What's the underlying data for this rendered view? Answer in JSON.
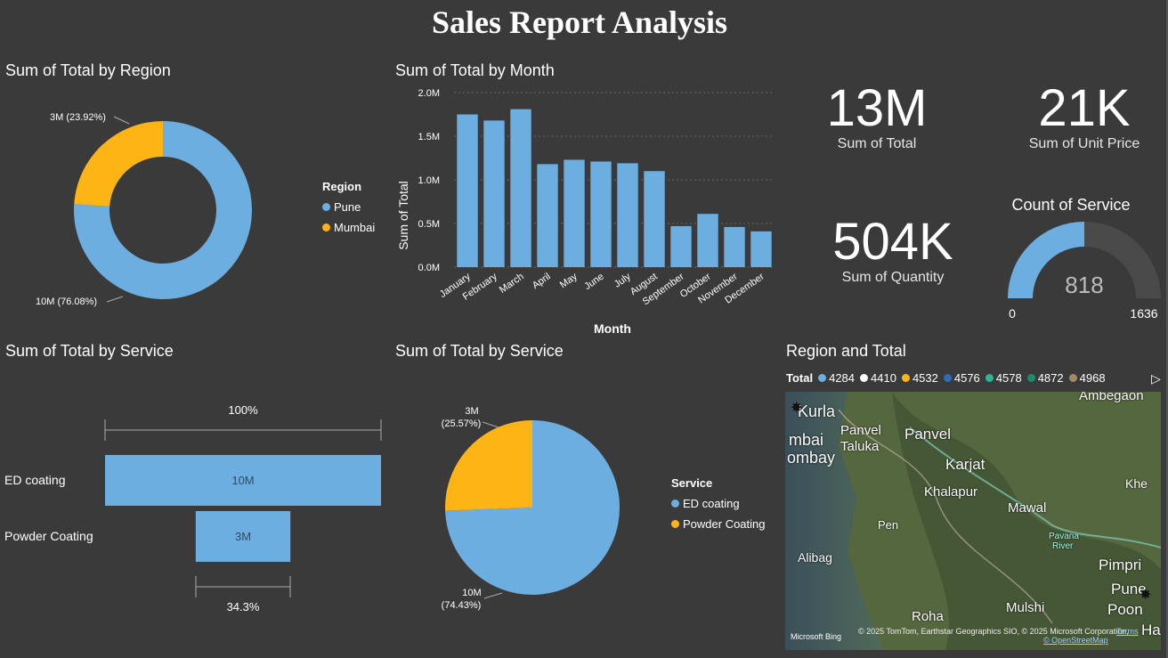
{
  "report": {
    "title": "Sales Report Analysis"
  },
  "colors": {
    "primary": "#6daee0",
    "secondary": "#fdb515",
    "background": "#3a3a3a"
  },
  "region_donut": {
    "title": "Sum of Total by Region",
    "legend_title": "Region",
    "slices": [
      {
        "name": "Pune",
        "label": "10M (76.08%)",
        "pct": 76.08,
        "color": "#6daee0"
      },
      {
        "name": "Mumbai",
        "label": "3M (23.92%)",
        "pct": 23.92,
        "color": "#fdb515"
      }
    ]
  },
  "month_bar": {
    "title": "Sum of Total by Month",
    "xlabel": "Month",
    "ylabel": "Sum of Total",
    "yticks": [
      "0.0M",
      "0.5M",
      "1.0M",
      "1.5M",
      "2.0M"
    ]
  },
  "kpis": {
    "total": {
      "value": "13M",
      "label": "Sum of Total"
    },
    "unit_price": {
      "value": "21K",
      "label": "Sum of Unit Price"
    },
    "quantity": {
      "value": "504K",
      "label": "Sum of Quantity"
    }
  },
  "gauge": {
    "title": "Count of Service",
    "value_text": "818",
    "min": "0",
    "max": "1636",
    "value": 818,
    "max_value": 1636
  },
  "service_funnel": {
    "title": "Sum of Total by Service",
    "top_pct": "100%",
    "bottom_pct": "34.3%",
    "rows": [
      {
        "name": "ED coating",
        "value_label": "10M",
        "fraction": 1.0
      },
      {
        "name": "Powder Coating",
        "value_label": "3M",
        "fraction": 0.343
      }
    ]
  },
  "service_pie": {
    "title": "Sum of Total by Service",
    "legend_title": "Service",
    "slices": [
      {
        "name": "ED coating",
        "value": "10M",
        "pct_label": "(74.43%)",
        "pct": 74.43,
        "color": "#6daee0"
      },
      {
        "name": "Powder Coating",
        "value": "3M",
        "pct_label": "(25.57%)",
        "pct": 25.57,
        "color": "#fdb515"
      }
    ]
  },
  "map": {
    "title": "Region and Total",
    "legend_label": "Total",
    "legend_items": [
      {
        "label": "4284",
        "color": "#6daee0"
      },
      {
        "label": "4410",
        "color": "#ffffff"
      },
      {
        "label": "4532",
        "color": "#fdb515"
      },
      {
        "label": "4576",
        "color": "#2e6db4"
      },
      {
        "label": "4578",
        "color": "#2bb59a"
      },
      {
        "label": "4872",
        "color": "#1f8a6e"
      },
      {
        "label": "4968",
        "color": "#a08a6a"
      }
    ],
    "places": [
      "Kurla",
      "mbai",
      "ombay",
      "Panvel",
      "Taluka",
      "Panvel",
      "Karjat",
      "Khalapur",
      "Mawal",
      "Pen",
      "Alibag",
      "Pimpri",
      "Pune",
      "Poon",
      "Mulshi",
      "Roha",
      "Ambegaon",
      "Khe",
      "Pavana",
      "River",
      "Hav"
    ],
    "attribution": "© 2025 TomTom, Earthstar Geographics SIO, © 2025 Microsoft Corporation,",
    "osm": "© OpenStreetMap",
    "terms": "Terms",
    "brand": "Microsoft Bing"
  },
  "chart_data": [
    {
      "type": "pie",
      "title": "Sum of Total by Region",
      "categories": [
        "Pune",
        "Mumbai"
      ],
      "values": [
        10,
        3
      ],
      "percentages": [
        76.08,
        23.92
      ]
    },
    {
      "type": "bar",
      "title": "Sum of Total by Month",
      "xlabel": "Month",
      "ylabel": "Sum of Total",
      "categories": [
        "January",
        "February",
        "March",
        "April",
        "May",
        "June",
        "July",
        "August",
        "September",
        "October",
        "November",
        "December"
      ],
      "values": [
        1.75,
        1.68,
        1.81,
        1.18,
        1.23,
        1.21,
        1.19,
        1.1,
        0.47,
        0.61,
        0.46,
        0.41
      ],
      "ylim": [
        0,
        2.0
      ],
      "grid": true
    },
    {
      "type": "bar",
      "title": "Sum of Total by Service",
      "categories": [
        "ED coating",
        "Powder Coating"
      ],
      "values": [
        10,
        3
      ]
    },
    {
      "type": "pie",
      "title": "Sum of Total by Service",
      "categories": [
        "ED coating",
        "Powder Coating"
      ],
      "values": [
        10,
        3
      ],
      "percentages": [
        74.43,
        25.57
      ]
    }
  ]
}
